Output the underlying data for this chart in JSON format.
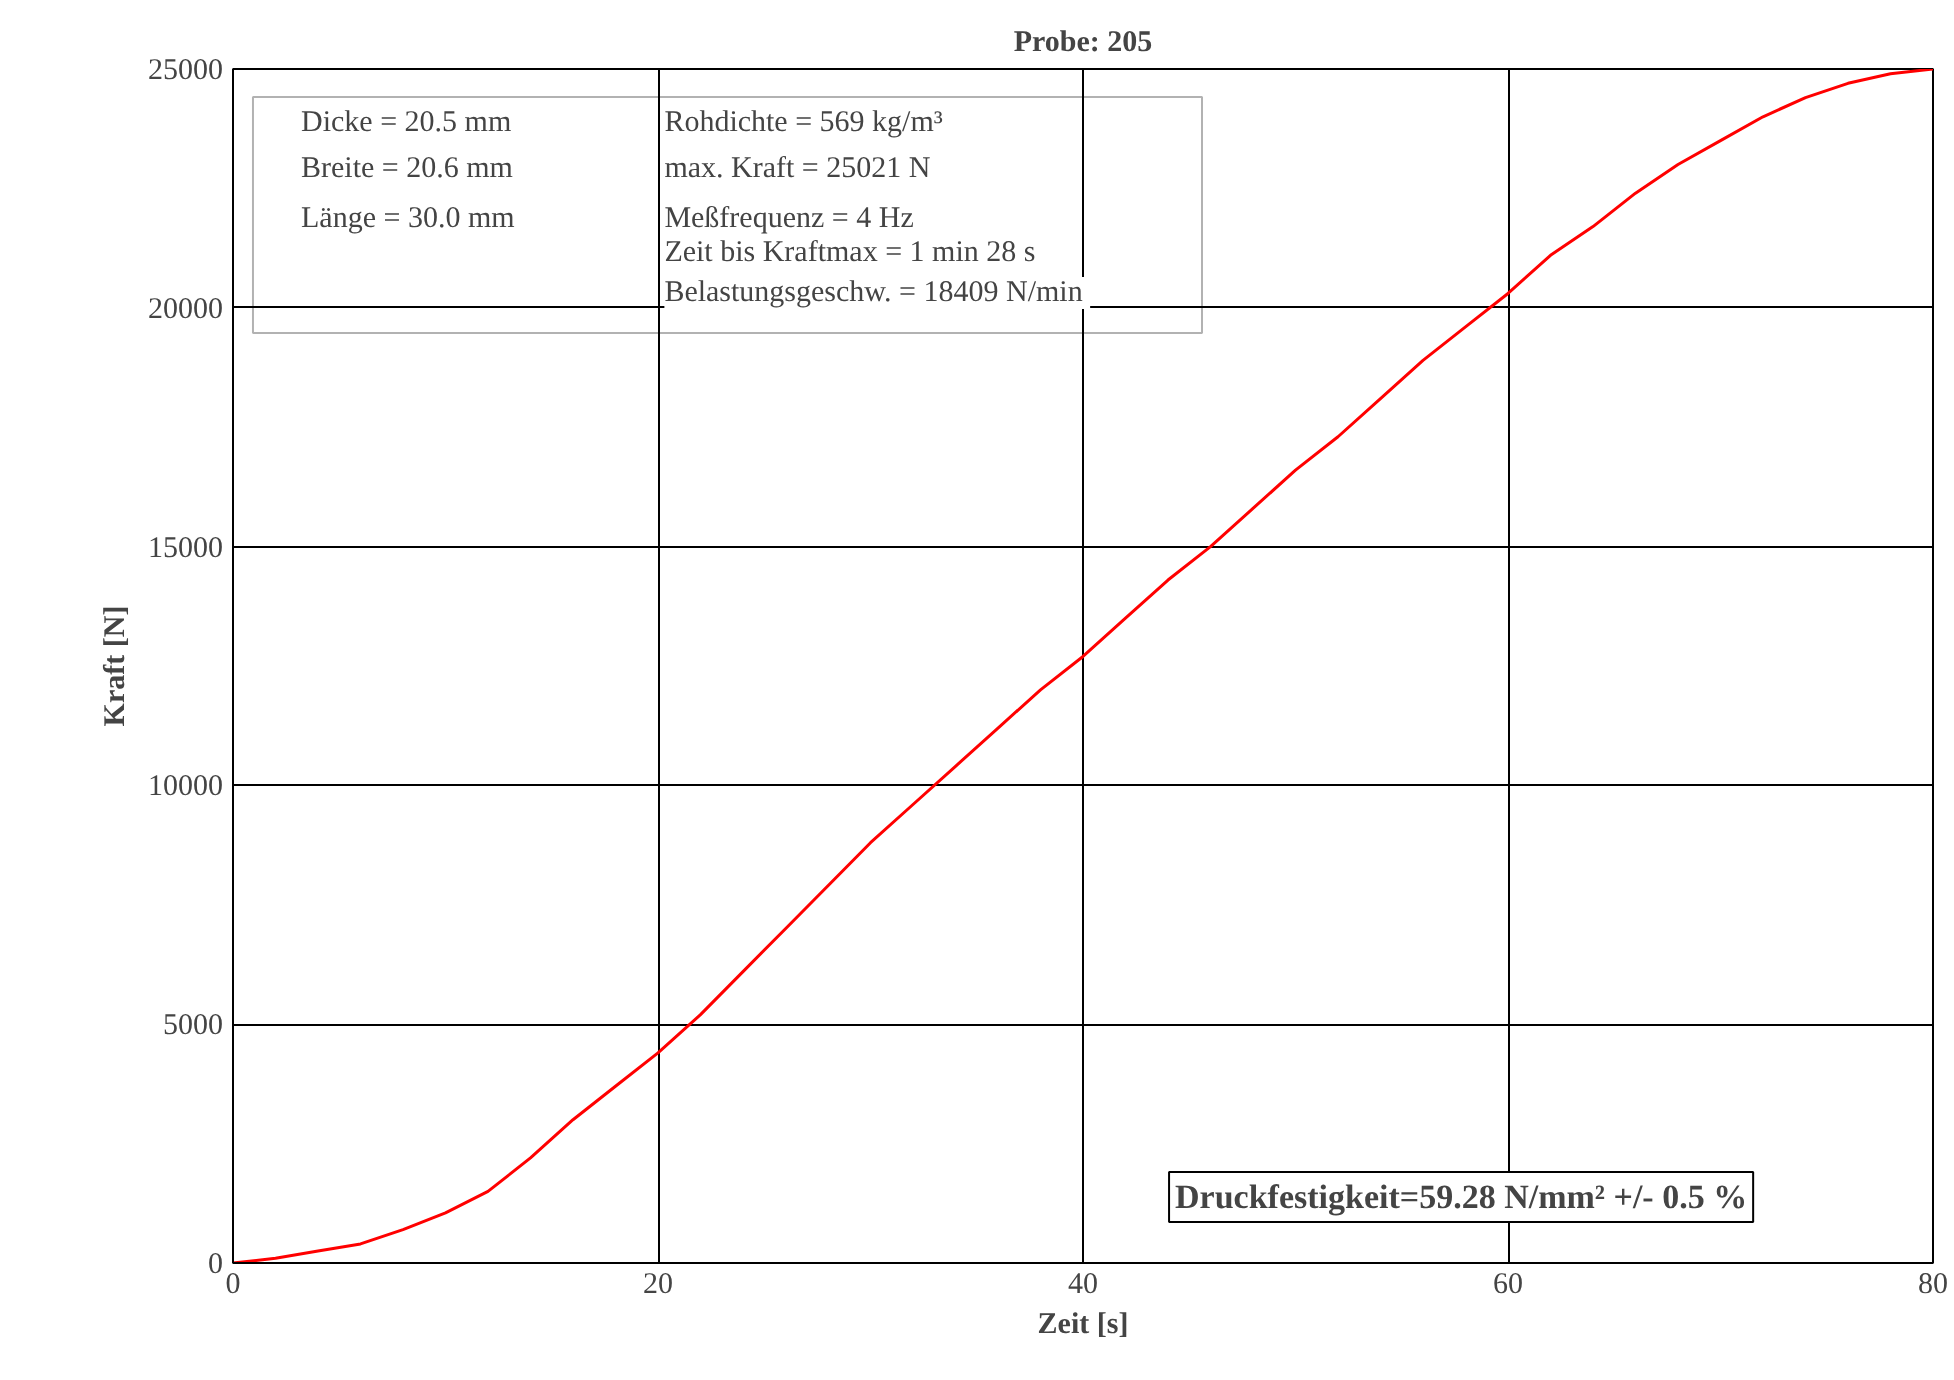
{
  "chart_data": {
    "type": "line",
    "title": "Probe: 205",
    "xlabel": "Zeit [s]",
    "ylabel": "Kraft [N]",
    "x": [
      0,
      2,
      4,
      6,
      8,
      10,
      12,
      14,
      16,
      18,
      20,
      22,
      24,
      26,
      28,
      30,
      32,
      34,
      36,
      38,
      40,
      42,
      44,
      46,
      48,
      50,
      52,
      54,
      56,
      58,
      60,
      62,
      64,
      66,
      68,
      70,
      72,
      74,
      76,
      78,
      80
    ],
    "series": [
      {
        "color": "#ff0000",
        "values": [
          0,
          100,
          250,
          400,
          700,
          1050,
          1500,
          2200,
          3000,
          3700,
          4400,
          5200,
          6100,
          7000,
          7900,
          8800,
          9600,
          10400,
          11200,
          12000,
          12700,
          13500,
          14300,
          15000,
          15800,
          16600,
          17300,
          18100,
          18900,
          19600,
          20300,
          21100,
          21700,
          22400,
          23000,
          23500,
          24000,
          24400,
          24700,
          24900,
          25000
        ]
      }
    ],
    "xlim": [
      0,
      80
    ],
    "xticks": [
      0,
      20,
      40,
      60,
      80
    ],
    "ylim": [
      0,
      25000
    ],
    "yticks": [
      0,
      5000,
      10000,
      15000,
      20000,
      25000
    ],
    "grid": true,
    "marker": "none",
    "line_style": "solid",
    "annotations": [
      "Dicke = 20.5 mm",
      "Breite = 20.6 mm",
      "Länge = 30.0 mm",
      "Rohdichte = 569 kg/m³",
      "max. Kraft = 25021 N",
      "Meßfrequenz = 4 Hz",
      "Zeit bis Kraftmax = 1 min 28 s",
      "Belastungsgeschw. = 18409  N/min",
      "Druckfestigkeit=59.28 N/mm² +/- 0.5 %"
    ]
  }
}
